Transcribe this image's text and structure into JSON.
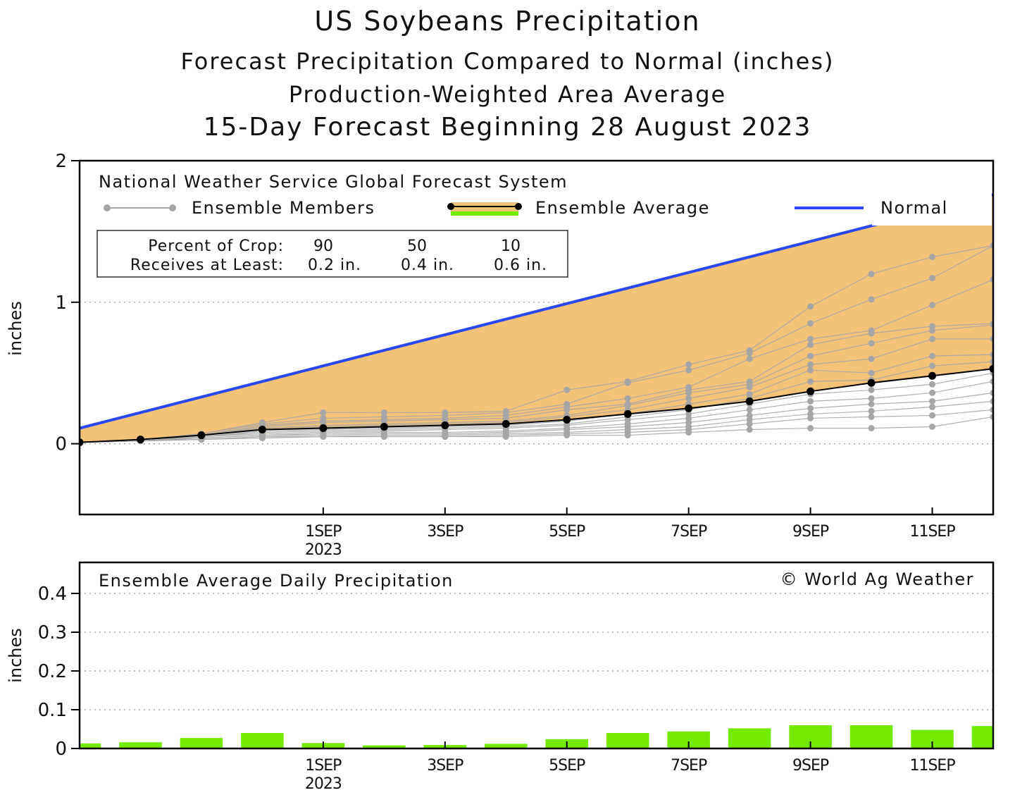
{
  "titles": {
    "main": "US Soybeans Precipitation",
    "line2": "Forecast Precipitation Compared to Normal (inches)",
    "line3": "Production-Weighted Area Average",
    "line4": "15-Day Forecast Beginning 28 August 2023"
  },
  "legend": {
    "source": "National Weather Service Global Forecast System",
    "members": "Ensemble Members",
    "average": "Ensemble Average",
    "normal": "Normal"
  },
  "crop_box": {
    "row1_label": "Percent of Crop:",
    "row1_values": [
      "90",
      "50",
      "10"
    ],
    "row2_label": "Receives at Least:",
    "row2_values": [
      "0.2 in.",
      "0.4 in.",
      "0.6 in."
    ]
  },
  "colors": {
    "fill": "#f2c277",
    "normal": "#2a47f2",
    "members": "#a6a6a6",
    "average": "#000000",
    "bar": "#73ea00",
    "grid": "#999999"
  },
  "chart_data": [
    {
      "type": "line",
      "title": "Forecast Precipitation Compared to Normal (inches)",
      "ylabel": "inches",
      "ylim": [
        -0.5,
        2
      ],
      "yticks": [
        "0",
        "1",
        "2"
      ],
      "xticks": [
        {
          "day": 4,
          "label": "1SEP",
          "sub": "2023"
        },
        {
          "day": 6,
          "label": "3SEP",
          "sub": ""
        },
        {
          "day": 8,
          "label": "5SEP",
          "sub": ""
        },
        {
          "day": 10,
          "label": "7SEP",
          "sub": ""
        },
        {
          "day": 12,
          "label": "9SEP",
          "sub": ""
        },
        {
          "day": 14,
          "label": "11SEP",
          "sub": ""
        }
      ],
      "xlim": [
        0,
        15
      ],
      "x": [
        0,
        1,
        2,
        3,
        4,
        5,
        6,
        7,
        8,
        9,
        10,
        11,
        12,
        13,
        14,
        15
      ],
      "normal": {
        "start": 0.11,
        "per_day": 0.11
      },
      "ensemble_average": [
        0.01,
        0.03,
        0.06,
        0.1,
        0.11,
        0.12,
        0.13,
        0.14,
        0.17,
        0.21,
        0.25,
        0.3,
        0.37,
        0.43,
        0.48,
        0.53
      ],
      "members": [
        [
          0.01,
          0.03,
          0.07,
          0.15,
          0.22,
          0.22,
          0.22,
          0.23,
          0.38,
          0.44,
          0.56,
          0.66,
          0.97,
          1.2,
          1.32,
          1.4
        ],
        [
          0.01,
          0.03,
          0.07,
          0.14,
          0.18,
          0.19,
          0.2,
          0.22,
          0.28,
          0.43,
          0.52,
          0.64,
          0.85,
          1.02,
          1.17,
          1.4
        ],
        [
          0.01,
          0.03,
          0.06,
          0.13,
          0.16,
          0.17,
          0.18,
          0.2,
          0.26,
          0.32,
          0.4,
          0.6,
          0.74,
          0.8,
          0.98,
          1.16
        ],
        [
          0.01,
          0.03,
          0.06,
          0.12,
          0.15,
          0.16,
          0.17,
          0.18,
          0.24,
          0.28,
          0.38,
          0.44,
          0.7,
          0.78,
          0.83,
          0.85
        ],
        [
          0.01,
          0.03,
          0.06,
          0.11,
          0.13,
          0.14,
          0.15,
          0.16,
          0.2,
          0.27,
          0.36,
          0.42,
          0.62,
          0.71,
          0.8,
          0.84
        ],
        [
          0.01,
          0.03,
          0.06,
          0.1,
          0.12,
          0.13,
          0.14,
          0.15,
          0.19,
          0.24,
          0.32,
          0.4,
          0.56,
          0.6,
          0.74,
          0.74
        ],
        [
          0.01,
          0.03,
          0.05,
          0.09,
          0.1,
          0.11,
          0.12,
          0.13,
          0.16,
          0.21,
          0.28,
          0.35,
          0.52,
          0.5,
          0.62,
          0.63
        ],
        [
          0.01,
          0.02,
          0.05,
          0.08,
          0.09,
          0.1,
          0.11,
          0.12,
          0.14,
          0.19,
          0.24,
          0.32,
          0.44,
          0.45,
          0.55,
          0.58
        ],
        [
          0.01,
          0.02,
          0.05,
          0.07,
          0.08,
          0.09,
          0.1,
          0.11,
          0.13,
          0.17,
          0.21,
          0.28,
          0.35,
          0.38,
          0.42,
          0.5
        ],
        [
          0.01,
          0.02,
          0.04,
          0.06,
          0.07,
          0.08,
          0.08,
          0.09,
          0.11,
          0.14,
          0.18,
          0.24,
          0.3,
          0.32,
          0.36,
          0.44
        ],
        [
          0.01,
          0.02,
          0.04,
          0.06,
          0.06,
          0.07,
          0.07,
          0.08,
          0.1,
          0.12,
          0.15,
          0.2,
          0.25,
          0.28,
          0.3,
          0.36
        ],
        [
          0.01,
          0.02,
          0.03,
          0.05,
          0.05,
          0.06,
          0.06,
          0.07,
          0.08,
          0.1,
          0.12,
          0.17,
          0.21,
          0.23,
          0.26,
          0.3
        ],
        [
          0.01,
          0.02,
          0.03,
          0.05,
          0.05,
          0.05,
          0.05,
          0.06,
          0.07,
          0.08,
          0.1,
          0.14,
          0.18,
          0.19,
          0.2,
          0.24
        ],
        [
          0.01,
          0.02,
          0.03,
          0.04,
          0.05,
          0.05,
          0.05,
          0.05,
          0.06,
          0.06,
          0.08,
          0.1,
          0.11,
          0.11,
          0.12,
          0.19
        ]
      ]
    },
    {
      "type": "bar",
      "title": "Ensemble Average Daily Precipitation",
      "ylabel": "inches",
      "ylim": [
        0,
        0.48
      ],
      "yticks": [
        "0",
        "0.1",
        "0.2",
        "0.3",
        "0.4"
      ],
      "xlim": [
        0,
        15
      ],
      "values": [
        0.013,
        0.016,
        0.027,
        0.04,
        0.014,
        0.008,
        0.009,
        0.012,
        0.024,
        0.04,
        0.044,
        0.052,
        0.06,
        0.06,
        0.048,
        0.058
      ],
      "credit": "© World Ag Weather"
    }
  ]
}
